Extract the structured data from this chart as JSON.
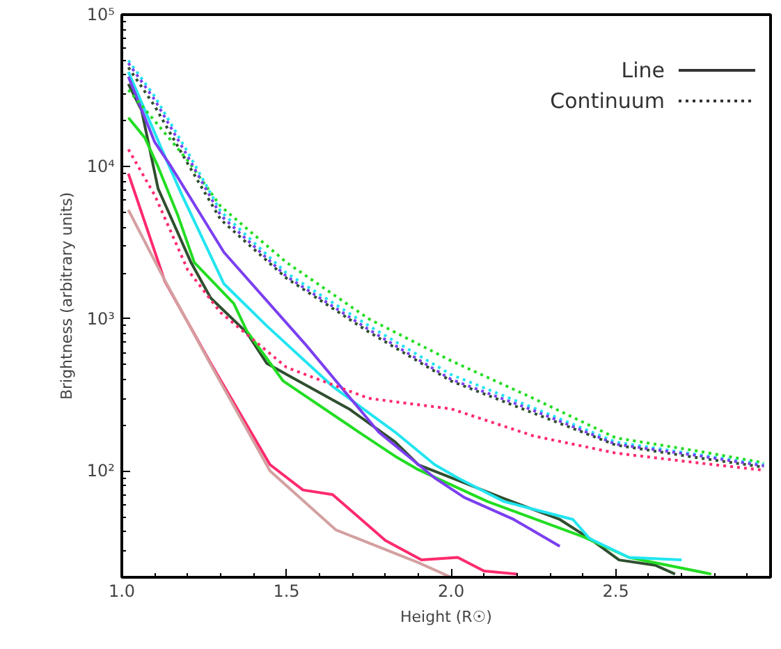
{
  "chart_data": {
    "type": "line",
    "xlabel": "Height (R☉)",
    "ylabel": "Brightness (arbitrary units)",
    "xlim": [
      1.0,
      2.97
    ],
    "ylim": [
      20,
      100000
    ],
    "log": "y",
    "grid": false,
    "xticks": [
      {
        "value": 1.0,
        "label": "1.0"
      },
      {
        "value": 1.5,
        "label": "1.5"
      },
      {
        "value": 2.0,
        "label": "2.0"
      },
      {
        "value": 2.5,
        "label": "2.5"
      }
    ],
    "yticks": [
      {
        "value": 100,
        "label": "10²"
      },
      {
        "value": 1000,
        "label": "10³"
      },
      {
        "value": 10000,
        "label": "10⁴"
      },
      {
        "value": 100000,
        "label": "10⁵"
      }
    ],
    "annotations": [
      "Line",
      "Continuum"
    ],
    "series": [
      {
        "color": "#2f4f2f",
        "line_style": "solid",
        "x": [
          1.02,
          1.06,
          1.11,
          1.21,
          1.27,
          1.38,
          1.44,
          1.51,
          1.69,
          1.83,
          1.9,
          2.16,
          2.33,
          2.42,
          2.51,
          2.62,
          2.68
        ],
        "values": [
          35000,
          23500,
          7200,
          2350,
          1370,
          810,
          510,
          420,
          256,
          155,
          110,
          66,
          48,
          36,
          26,
          24,
          21
        ]
      },
      {
        "color": "#22dd22",
        "line_style": "solid",
        "x": [
          1.02,
          1.07,
          1.11,
          1.17,
          1.22,
          1.34,
          1.38,
          1.49,
          1.72,
          1.83,
          1.9,
          2.11,
          2.4,
          2.54,
          2.79
        ],
        "values": [
          21000,
          15500,
          10000,
          4800,
          2350,
          1260,
          830,
          390,
          180,
          125,
          102,
          63,
          37,
          27,
          21
        ]
      },
      {
        "color": "#22e5f0",
        "line_style": "solid",
        "x": [
          1.02,
          1.13,
          1.18,
          1.31,
          1.44,
          1.64,
          1.83,
          1.95,
          2.02,
          2.16,
          2.37,
          2.42,
          2.54,
          2.7
        ],
        "values": [
          42000,
          11800,
          6700,
          1700,
          900,
          360,
          180,
          110,
          90,
          63,
          48,
          36,
          27,
          26
        ]
      },
      {
        "color": "#7b3ff0",
        "line_style": "solid",
        "x": [
          1.02,
          1.1,
          1.15,
          1.31,
          1.56,
          1.78,
          1.95,
          2.04,
          2.19,
          2.33
        ],
        "values": [
          39000,
          14500,
          10000,
          2740,
          670,
          180,
          90,
          67,
          48,
          32
        ]
      },
      {
        "color": "#ff2a6e",
        "line_style": "solid",
        "x": [
          1.02,
          1.13,
          1.27,
          1.45,
          1.55,
          1.64,
          1.8,
          1.91,
          2.02,
          2.1,
          2.2
        ],
        "values": [
          9000,
          1780,
          510,
          110,
          75,
          70,
          35,
          26,
          27,
          22,
          21
        ]
      },
      {
        "color": "#d4a0a0",
        "line_style": "solid",
        "x": [
          1.02,
          1.13,
          1.27,
          1.45,
          1.65,
          1.9,
          2.0
        ],
        "values": [
          5200,
          1800,
          500,
          100,
          41,
          25,
          20
        ]
      },
      {
        "color": "#2f4f2f",
        "line_style": "dotted",
        "x": [
          1.02,
          1.1,
          1.2,
          1.3,
          1.5,
          1.75,
          2.0,
          2.25,
          2.5,
          2.75,
          2.95
        ],
        "values": [
          45000,
          25000,
          10500,
          4500,
          1850,
          820,
          390,
          240,
          148,
          122,
          106
        ]
      },
      {
        "color": "#22dd22",
        "line_style": "dotted",
        "x": [
          1.02,
          1.1,
          1.2,
          1.3,
          1.5,
          1.75,
          2.0,
          2.25,
          2.5,
          2.75,
          2.95
        ],
        "values": [
          32000,
          20000,
          11000,
          5500,
          2350,
          1000,
          530,
          300,
          165,
          135,
          113
        ]
      },
      {
        "color": "#22e5f0",
        "line_style": "dotted",
        "x": [
          1.02,
          1.1,
          1.2,
          1.3,
          1.5,
          1.75,
          2.0,
          2.25,
          2.5,
          2.75,
          2.95
        ],
        "values": [
          50000,
          29000,
          12500,
          5100,
          2000,
          900,
          430,
          260,
          155,
          128,
          110
        ]
      },
      {
        "color": "#7b3ff0",
        "line_style": "dotted",
        "x": [
          1.02,
          1.1,
          1.2,
          1.3,
          1.5,
          1.75,
          2.0,
          2.25,
          2.5,
          2.75,
          2.95
        ],
        "values": [
          48000,
          27500,
          11700,
          4800,
          1900,
          850,
          400,
          250,
          150,
          126,
          108
        ]
      },
      {
        "color": "#ff2a6e",
        "line_style": "dotted",
        "x": [
          1.02,
          1.1,
          1.2,
          1.3,
          1.5,
          1.75,
          2.0,
          2.25,
          2.5,
          2.75,
          2.95
        ],
        "values": [
          13000,
          6500,
          2100,
          1100,
          480,
          300,
          256,
          170,
          131,
          113,
          101
        ]
      }
    ]
  }
}
